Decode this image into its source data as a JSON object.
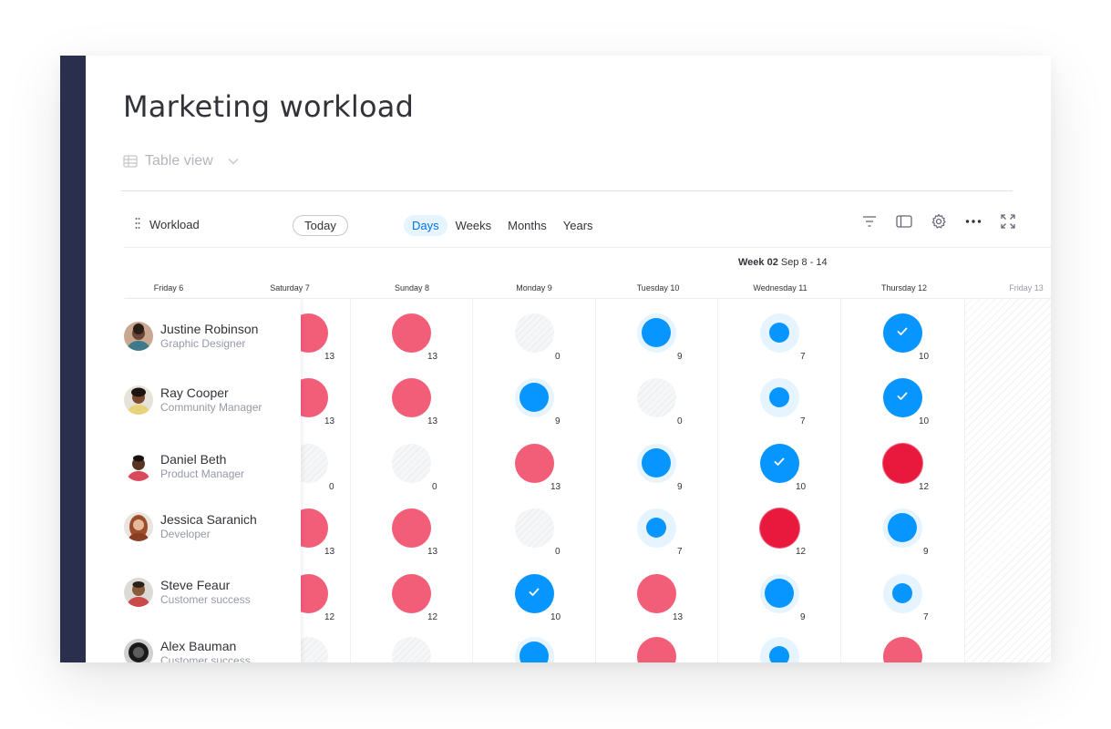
{
  "board": {
    "title": "Marketing workload",
    "view_label": "Table view"
  },
  "toolbar": {
    "workload_label": "Workload",
    "today_label": "Today",
    "tabs": [
      {
        "label": "Days",
        "active": true
      },
      {
        "label": "Weeks",
        "active": false
      },
      {
        "label": "Months",
        "active": false
      },
      {
        "label": "Years",
        "active": false
      }
    ],
    "icons": [
      "filter-icon",
      "sidebar-panel-icon",
      "gear-icon",
      "more-icon",
      "fullscreen-icon"
    ]
  },
  "timeline": {
    "week_label": "Week 02",
    "week_range": "Sep 8 - 14",
    "days": [
      "Friday 6",
      "Saturday 7",
      "Sunday 8",
      "Monday 9",
      "Tuesday 10",
      "Wednesday 11",
      "Thursday 12",
      "Friday 13"
    ]
  },
  "colors": {
    "sidebar": "#292f4c",
    "accent": "#0073ea",
    "overloaded": "#f25d78",
    "critical": "#e8193c",
    "normal": "#0795ff",
    "light_ring": "#e5f4ff",
    "empty": "#f0f1f3"
  },
  "people": [
    {
      "name": "Justine Robinson",
      "role": "Graphic Designer"
    },
    {
      "name": "Ray Cooper",
      "role": "Community Manager"
    },
    {
      "name": "Daniel Beth",
      "role": "Product Manager"
    },
    {
      "name": "Jessica Saranich",
      "role": "Developer"
    },
    {
      "name": "Steve Feaur",
      "role": "Customer success"
    },
    {
      "name": "Alex Bauman",
      "role": "Customer success"
    }
  ],
  "workload": [
    [
      {
        "value": "13",
        "status": "over"
      },
      {
        "value": "13",
        "status": "over"
      },
      {
        "value": "0",
        "status": "empty"
      },
      {
        "value": "9",
        "status": "high"
      },
      {
        "value": "7",
        "status": "medium"
      },
      {
        "value": "10",
        "status": "full"
      }
    ],
    [
      {
        "value": "13",
        "status": "over"
      },
      {
        "value": "13",
        "status": "over"
      },
      {
        "value": "9",
        "status": "high"
      },
      {
        "value": "0",
        "status": "empty"
      },
      {
        "value": "7",
        "status": "medium"
      },
      {
        "value": "10",
        "status": "full"
      }
    ],
    [
      {
        "value": "0",
        "status": "empty"
      },
      {
        "value": "0",
        "status": "empty"
      },
      {
        "value": "13",
        "status": "over"
      },
      {
        "value": "9",
        "status": "high"
      },
      {
        "value": "10",
        "status": "full"
      },
      {
        "value": "12",
        "status": "critical"
      }
    ],
    [
      {
        "value": "13",
        "status": "over"
      },
      {
        "value": "13",
        "status": "over"
      },
      {
        "value": "0",
        "status": "empty"
      },
      {
        "value": "7",
        "status": "medium"
      },
      {
        "value": "12",
        "status": "critical"
      },
      {
        "value": "9",
        "status": "high"
      }
    ],
    [
      {
        "value": "12",
        "status": "over"
      },
      {
        "value": "12",
        "status": "over"
      },
      {
        "value": "10",
        "status": "full"
      },
      {
        "value": "13",
        "status": "over"
      },
      {
        "value": "9",
        "status": "high"
      },
      {
        "value": "7",
        "status": "medium"
      }
    ],
    [
      {
        "value": "",
        "status": "empty"
      },
      {
        "value": "",
        "status": "empty"
      },
      {
        "value": "",
        "status": "high"
      },
      {
        "value": "",
        "status": "over"
      },
      {
        "value": "",
        "status": "medium"
      },
      {
        "value": "",
        "status": "over"
      }
    ]
  ]
}
